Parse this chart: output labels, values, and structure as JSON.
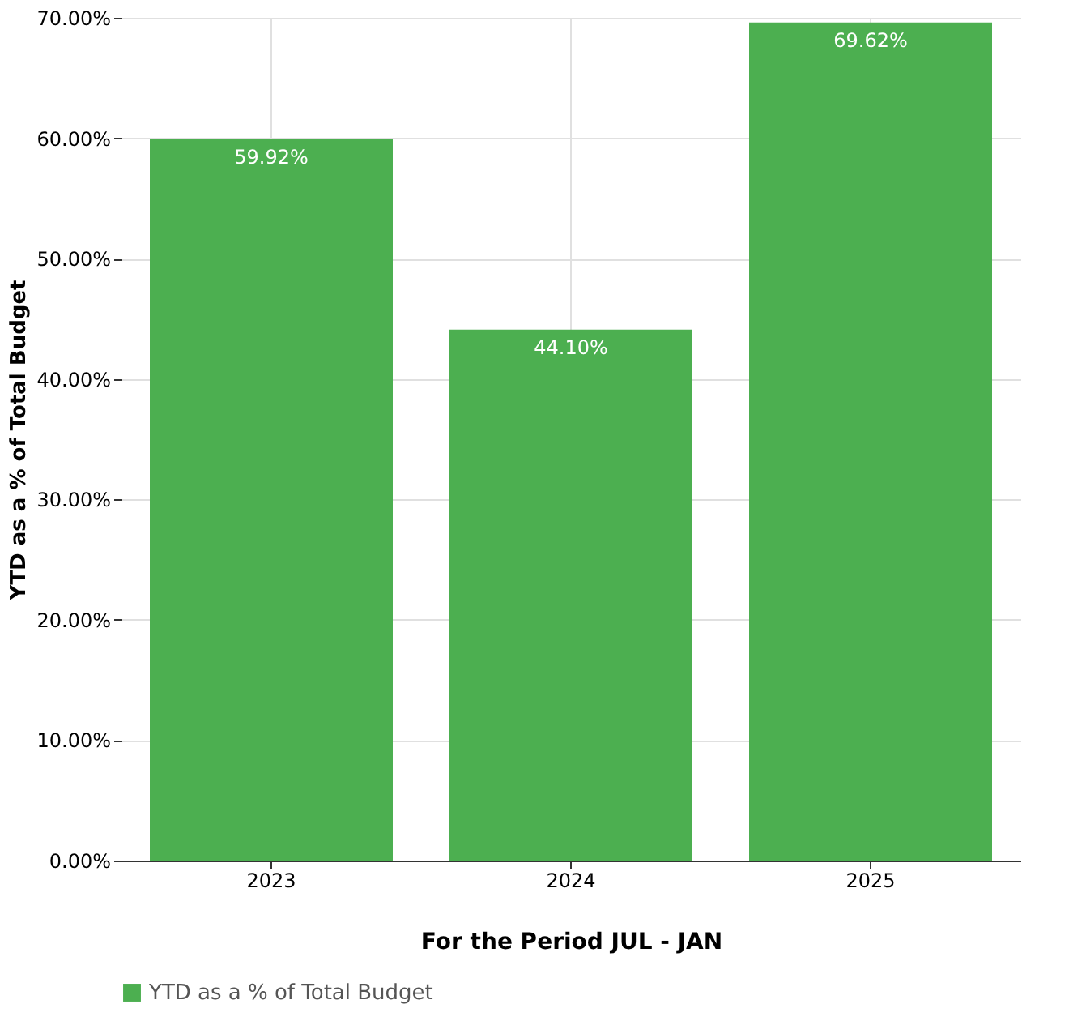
{
  "chart_data": {
    "type": "bar",
    "xlabel": "For the Period JUL - JAN",
    "ylabel": "YTD as a % of Total Budget",
    "categories": [
      "2023",
      "2024",
      "2025"
    ],
    "series": [
      {
        "name": "YTD as a % of Total Budget",
        "color": "#4caf50",
        "values": [
          59.92,
          44.1,
          69.62
        ],
        "value_labels": [
          "59.92%",
          "44.10%",
          "69.62%"
        ]
      }
    ],
    "ylim": [
      0,
      70
    ],
    "yticks": [
      {
        "value": 0,
        "label": "0.00%"
      },
      {
        "value": 10,
        "label": "10.00%"
      },
      {
        "value": 20,
        "label": "20.00%"
      },
      {
        "value": 30,
        "label": "30.00%"
      },
      {
        "value": 40,
        "label": "40.00%"
      },
      {
        "value": 50,
        "label": "50.00%"
      },
      {
        "value": 60,
        "label": "60.00%"
      },
      {
        "value": 70,
        "label": "70.00%"
      }
    ],
    "grid": true,
    "legend": "bottom"
  }
}
